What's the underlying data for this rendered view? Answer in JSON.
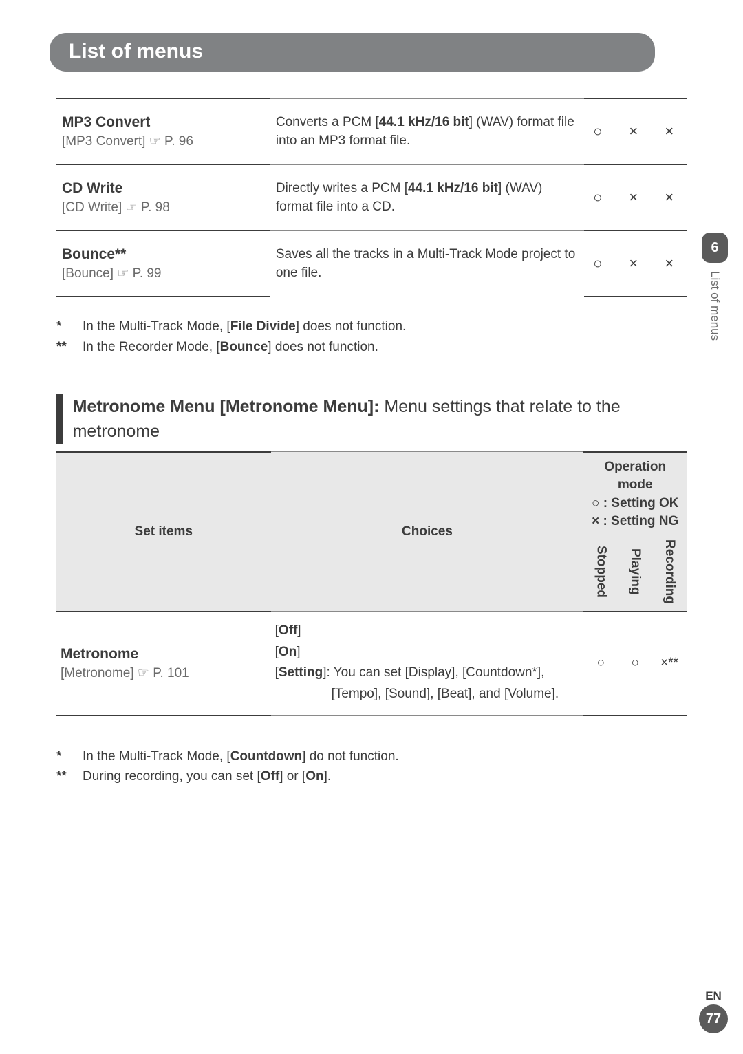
{
  "title": "List of menus",
  "top_rows": [
    {
      "name": "MP3 Convert",
      "ref": "[MP3 Convert] ☞ P. 96",
      "desc_pre": "Converts a PCM [",
      "desc_bold": "44.1 kHz/16 bit",
      "desc_post": "] (WAV) format file into an MP3 format file.",
      "stopped": "○",
      "playing": "×",
      "recording": "×"
    },
    {
      "name": "CD Write",
      "ref": "[CD Write] ☞ P. 98",
      "desc_pre": "Directly writes a PCM [",
      "desc_bold": "44.1 kHz/16 bit",
      "desc_post": "] (WAV) format file into a CD.",
      "stopped": "○",
      "playing": "×",
      "recording": "×"
    },
    {
      "name": "Bounce**",
      "ref": "[Bounce] ☞ P. 99",
      "desc_pre": "Saves all the tracks in a Multi-Track Mode project to one file.",
      "desc_bold": "",
      "desc_post": "",
      "stopped": "○",
      "playing": "×",
      "recording": "×"
    }
  ],
  "footnotes1": [
    {
      "star": "*",
      "pre": "In the Multi-Track Mode, [",
      "bold": "File Divide",
      "post": "] does not function."
    },
    {
      "star": "**",
      "pre": "In the Recorder Mode, [",
      "bold": "Bounce",
      "post": "] does not function."
    }
  ],
  "section_bold": "Metronome Menu [Metronome Menu]: ",
  "section_rest": "Menu settings that relate to the metronome",
  "met_headers": {
    "items": "Set items",
    "choices": "Choices",
    "opmode_l1": "Operation mode",
    "opmode_l2": "○ : Setting OK",
    "opmode_l3": "× : Setting NG",
    "sub": [
      "Stopped",
      "Playing",
      "Recording"
    ]
  },
  "met_row": {
    "name": "Metronome",
    "ref": "[Metronome] ☞ P. 101",
    "opt1": "Off",
    "opt2": "On",
    "opt3_label": "Setting",
    "opt3_rest": "]: You can set [Display], [Countdown*], [Tempo], [Sound], [Beat], and [Volume].",
    "stopped": "○",
    "playing": "○",
    "recording": "×**"
  },
  "footnotes2": [
    {
      "star": "*",
      "pre": "In the Multi-Track Mode, [",
      "bold": "Countdown",
      "post": "] do not function."
    },
    {
      "star": "**",
      "pre": "During recording, you can set [",
      "bold": "Off",
      "mid": "] or [",
      "bold2": "On",
      "post": "]."
    }
  ],
  "side": {
    "num": "6",
    "label": "List of menus"
  },
  "page": {
    "lang": "EN",
    "num": "77"
  }
}
